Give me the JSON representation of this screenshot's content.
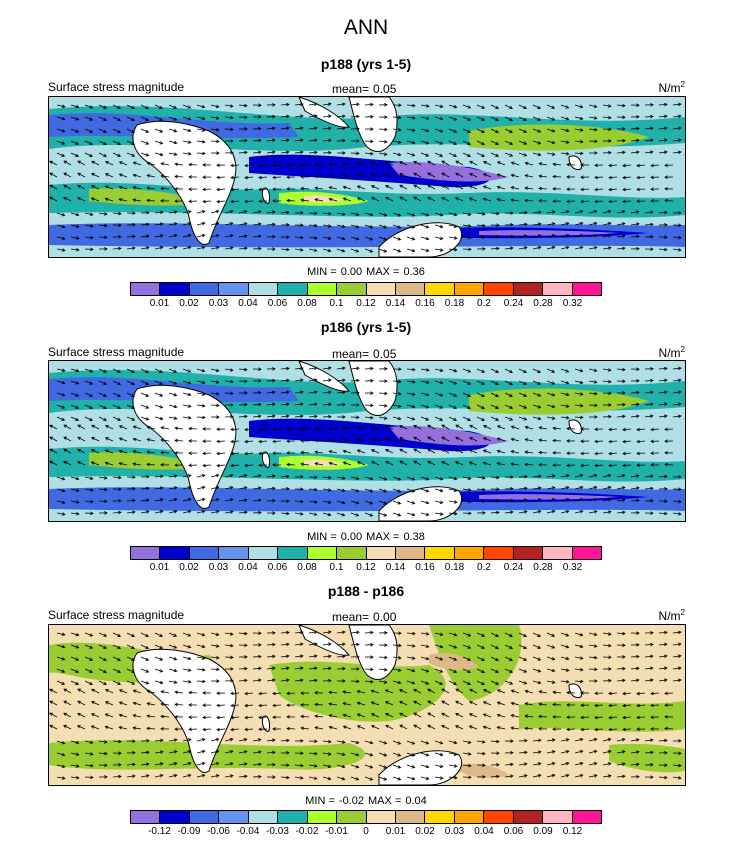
{
  "title": "ANN",
  "colors": {
    "land": "#ffffff",
    "coast": "#000000",
    "arrow": "#000000"
  },
  "chart_data": [
    {
      "type": "heatmap",
      "title": "p188 (yrs 1-5)",
      "variable": "Surface stress magnitude",
      "mean_label": "mean=",
      "mean": "0.05",
      "units": "N/m",
      "units_exp": "2",
      "min_label": "MIN =",
      "min": "0.00",
      "max_label": "MAX =",
      "max": "0.36",
      "levels": [
        "0.01",
        "0.02",
        "0.03",
        "0.04",
        "0.06",
        "0.08",
        "0.1",
        "0.12",
        "0.14",
        "0.16",
        "0.18",
        "0.2",
        "0.24",
        "0.28",
        "0.32"
      ],
      "colors": [
        "#9370db",
        "#0000cd",
        "#4169e1",
        "#6495ed",
        "#b0e0e6",
        "#20b2aa",
        "#adff2f",
        "#9acd32",
        "#f5deb3",
        "#deb887",
        "#ffd700",
        "#ffa500",
        "#ff4500",
        "#b22222",
        "#ffb6c1",
        "#ff1493"
      ]
    },
    {
      "type": "heatmap",
      "title": "p186 (yrs 1-5)",
      "variable": "Surface stress magnitude",
      "mean_label": "mean=",
      "mean": "0.05",
      "units": "N/m",
      "units_exp": "2",
      "min_label": "MIN =",
      "min": "0.00",
      "max_label": "MAX =",
      "max": "0.38",
      "levels": [
        "0.01",
        "0.02",
        "0.03",
        "0.04",
        "0.06",
        "0.08",
        "0.1",
        "0.12",
        "0.14",
        "0.16",
        "0.18",
        "0.2",
        "0.24",
        "0.28",
        "0.32"
      ],
      "colors": [
        "#9370db",
        "#0000cd",
        "#4169e1",
        "#6495ed",
        "#b0e0e6",
        "#20b2aa",
        "#adff2f",
        "#9acd32",
        "#f5deb3",
        "#deb887",
        "#ffd700",
        "#ffa500",
        "#ff4500",
        "#b22222",
        "#ffb6c1",
        "#ff1493"
      ]
    },
    {
      "type": "heatmap",
      "title": "p188 - p186",
      "variable": "Surface stress magnitude",
      "mean_label": "mean=",
      "mean": "0.00",
      "units": "N/m",
      "units_exp": "2",
      "min_label": "MIN =",
      "min": "-0.02",
      "max_label": "MAX =",
      "max": "0.04",
      "levels": [
        "-0.12",
        "-0.09",
        "-0.06",
        "-0.04",
        "-0.03",
        "-0.02",
        "-0.01",
        "0",
        "0.01",
        "0.02",
        "0.03",
        "0.04",
        "0.06",
        "0.09",
        "0.12"
      ],
      "colors": [
        "#9370db",
        "#0000cd",
        "#4169e1",
        "#6495ed",
        "#b0e0e6",
        "#20b2aa",
        "#adff2f",
        "#9acd32",
        "#f5deb3",
        "#deb887",
        "#ffd700",
        "#ffa500",
        "#ff4500",
        "#b22222",
        "#ffb6c1",
        "#ff1493"
      ]
    }
  ]
}
